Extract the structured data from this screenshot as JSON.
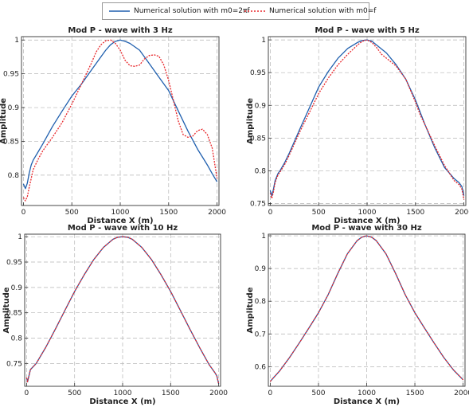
{
  "legend": {
    "entries": [
      {
        "label": "Numerical solution with m0=2πf",
        "color": "#1f5fae",
        "dash": "solid"
      },
      {
        "label": "Numerical solution with m0=f",
        "color": "#e8262a",
        "dash": "dotted"
      }
    ]
  },
  "chart_data": [
    {
      "type": "line",
      "title": "Mod P - wave with 3 Hz",
      "xlabel": "Distance X (m)",
      "ylabel": "Amplitude",
      "xlim": [
        -20,
        2020
      ],
      "ylim": [
        0.755,
        1.005
      ],
      "xticks": [
        0,
        500,
        1000,
        1500,
        2000
      ],
      "yticks": [
        0.8,
        0.85,
        0.9,
        0.95,
        1
      ],
      "ytick_labels": [
        "0.8",
        "0.85",
        "0.9",
        "0.95",
        "1"
      ],
      "grid": true,
      "series": [
        {
          "name": "Numerical solution with m0=2πf",
          "color": "#1f5fae",
          "dash": "solid",
          "x": [
            0,
            20,
            40,
            60,
            80,
            100,
            150,
            200,
            300,
            400,
            500,
            600,
            700,
            800,
            850,
            900,
            950,
            1000,
            1050,
            1100,
            1200,
            1300,
            1400,
            1500,
            1600,
            1700,
            1800,
            1900,
            1950,
            2000
          ],
          "y": [
            0.787,
            0.78,
            0.788,
            0.803,
            0.815,
            0.822,
            0.834,
            0.846,
            0.872,
            0.895,
            0.917,
            0.935,
            0.955,
            0.975,
            0.985,
            0.993,
            0.998,
            1.0,
            0.998,
            0.995,
            0.985,
            0.965,
            0.945,
            0.925,
            0.895,
            0.865,
            0.838,
            0.815,
            0.802,
            0.79
          ]
        },
        {
          "name": "Numerical solution with m0=f",
          "color": "#e8262a",
          "dash": "dotted",
          "x": [
            0,
            20,
            40,
            60,
            80,
            100,
            150,
            200,
            300,
            400,
            500,
            600,
            700,
            750,
            800,
            850,
            900,
            950,
            1000,
            1050,
            1100,
            1150,
            1200,
            1250,
            1300,
            1350,
            1400,
            1450,
            1500,
            1550,
            1600,
            1650,
            1700,
            1750,
            1800,
            1850,
            1900,
            1950,
            2000
          ],
          "y": [
            0.767,
            0.762,
            0.768,
            0.782,
            0.795,
            0.808,
            0.823,
            0.836,
            0.856,
            0.878,
            0.905,
            0.935,
            0.965,
            0.982,
            0.993,
            0.999,
            1.0,
            0.995,
            0.985,
            0.97,
            0.962,
            0.961,
            0.963,
            0.972,
            0.977,
            0.978,
            0.976,
            0.963,
            0.94,
            0.91,
            0.88,
            0.86,
            0.856,
            0.858,
            0.866,
            0.868,
            0.86,
            0.84,
            0.795
          ]
        }
      ]
    },
    {
      "type": "line",
      "title": "Mod P - wave with 5 Hz",
      "xlabel": "Distance X (m)",
      "ylabel": "Amplitude",
      "xlim": [
        -20,
        2020
      ],
      "ylim": [
        0.747,
        1.005
      ],
      "xticks": [
        0,
        500,
        1000,
        1500,
        2000
      ],
      "yticks": [
        0.75,
        0.8,
        0.85,
        0.9,
        0.95,
        1
      ],
      "ytick_labels": [
        "0.75",
        "0.8",
        "0.85",
        "0.9",
        "0.95",
        "1"
      ],
      "grid": true,
      "series": [
        {
          "name": "Numerical solution with m0=2πf",
          "color": "#1f5fae",
          "dash": "solid",
          "x": [
            0,
            15,
            30,
            50,
            80,
            100,
            150,
            200,
            300,
            400,
            500,
            600,
            700,
            800,
            900,
            950,
            1000,
            1050,
            1100,
            1200,
            1300,
            1400,
            1500,
            1600,
            1700,
            1800,
            1900,
            1950,
            1980,
            2000
          ],
          "y": [
            0.77,
            0.762,
            0.77,
            0.785,
            0.796,
            0.8,
            0.813,
            0.828,
            0.862,
            0.895,
            0.928,
            0.952,
            0.972,
            0.987,
            0.996,
            0.999,
            1.0,
            0.998,
            0.992,
            0.98,
            0.962,
            0.94,
            0.908,
            0.87,
            0.835,
            0.805,
            0.788,
            0.782,
            0.776,
            0.762
          ]
        },
        {
          "name": "Numerical solution with m0=f",
          "color": "#e8262a",
          "dash": "dotted",
          "x": [
            0,
            15,
            30,
            50,
            80,
            100,
            150,
            200,
            300,
            400,
            500,
            600,
            700,
            800,
            900,
            950,
            1000,
            1050,
            1100,
            1150,
            1200,
            1300,
            1400,
            1500,
            1550,
            1600,
            1700,
            1800,
            1900,
            1950,
            1980,
            2000
          ],
          "y": [
            0.766,
            0.758,
            0.766,
            0.782,
            0.794,
            0.798,
            0.81,
            0.825,
            0.858,
            0.888,
            0.918,
            0.942,
            0.962,
            0.978,
            0.992,
            0.998,
            1.0,
            0.996,
            0.988,
            0.978,
            0.972,
            0.96,
            0.94,
            0.905,
            0.885,
            0.87,
            0.838,
            0.808,
            0.785,
            0.779,
            0.772,
            0.756
          ]
        }
      ]
    },
    {
      "type": "line",
      "title": "Mod P - wave with 10 Hz",
      "xlabel": "Distance X (m)",
      "ylabel": "Amplitude",
      "xlim": [
        -20,
        2020
      ],
      "ylim": [
        0.705,
        1.005
      ],
      "xticks": [
        0,
        500,
        1000,
        1500,
        2000
      ],
      "yticks": [
        0.75,
        0.8,
        0.85,
        0.9,
        0.95,
        1
      ],
      "ytick_labels": [
        "0.75",
        "0.8",
        "0.85",
        "0.9",
        "0.95",
        "1"
      ],
      "grid": true,
      "series": [
        {
          "name": "Numerical solution with m0=2πf",
          "color": "#1f5fae",
          "dash": "solid",
          "x": [
            0,
            10,
            20,
            40,
            100,
            200,
            300,
            400,
            500,
            600,
            700,
            800,
            900,
            950,
            1000,
            1050,
            1100,
            1200,
            1300,
            1400,
            1500,
            1600,
            1700,
            1800,
            1900,
            1960,
            1980,
            1990,
            2000
          ],
          "y": [
            0.722,
            0.714,
            0.722,
            0.738,
            0.75,
            0.782,
            0.818,
            0.855,
            0.892,
            0.925,
            0.955,
            0.979,
            0.995,
            0.999,
            1.0,
            0.999,
            0.995,
            0.979,
            0.955,
            0.925,
            0.892,
            0.855,
            0.818,
            0.782,
            0.748,
            0.732,
            0.726,
            0.718,
            0.71
          ]
        },
        {
          "name": "Numerical solution with m0=f",
          "color": "#e8262a",
          "dash": "dotted",
          "x": [
            0,
            10,
            20,
            40,
            100,
            200,
            300,
            400,
            500,
            600,
            700,
            800,
            900,
            950,
            1000,
            1050,
            1100,
            1200,
            1300,
            1400,
            1500,
            1600,
            1700,
            1800,
            1900,
            1960,
            1980,
            1990,
            2000
          ],
          "y": [
            0.722,
            0.714,
            0.722,
            0.738,
            0.75,
            0.782,
            0.818,
            0.855,
            0.892,
            0.925,
            0.955,
            0.979,
            0.995,
            0.999,
            1.0,
            0.999,
            0.995,
            0.979,
            0.955,
            0.925,
            0.892,
            0.855,
            0.818,
            0.782,
            0.748,
            0.732,
            0.726,
            0.718,
            0.71
          ]
        }
      ]
    },
    {
      "type": "line",
      "title": "Mod P - wave with 30 Hz",
      "xlabel": "Distance X (m)",
      "ylabel": "Amplitude",
      "xlim": [
        -20,
        2020
      ],
      "ylim": [
        0.54,
        1.005
      ],
      "xticks": [
        0,
        500,
        1000,
        1500,
        2000
      ],
      "yticks": [
        0.6,
        0.7,
        0.8,
        0.9,
        1
      ],
      "ytick_labels": [
        "0.6",
        "0.7",
        "0.8",
        "0.9",
        "1"
      ],
      "grid": true,
      "series": [
        {
          "name": "Numerical solution with m0=2πf",
          "color": "#1f5fae",
          "dash": "solid",
          "x": [
            0,
            100,
            200,
            300,
            400,
            500,
            600,
            700,
            800,
            900,
            950,
            1000,
            1050,
            1100,
            1200,
            1300,
            1400,
            1500,
            1600,
            1700,
            1800,
            1900,
            2000
          ],
          "y": [
            0.555,
            0.588,
            0.628,
            0.672,
            0.718,
            0.765,
            0.82,
            0.885,
            0.945,
            0.985,
            0.996,
            1.0,
            0.996,
            0.985,
            0.945,
            0.885,
            0.82,
            0.765,
            0.718,
            0.672,
            0.628,
            0.59,
            0.56
          ]
        },
        {
          "name": "Numerical solution with m0=f",
          "color": "#e8262a",
          "dash": "dotted",
          "x": [
            0,
            100,
            200,
            300,
            400,
            500,
            600,
            700,
            800,
            900,
            950,
            1000,
            1050,
            1100,
            1200,
            1300,
            1400,
            1500,
            1600,
            1700,
            1800,
            1900,
            2000
          ],
          "y": [
            0.555,
            0.588,
            0.628,
            0.672,
            0.718,
            0.765,
            0.82,
            0.885,
            0.945,
            0.985,
            0.996,
            1.0,
            0.996,
            0.985,
            0.945,
            0.885,
            0.82,
            0.765,
            0.718,
            0.672,
            0.628,
            0.59,
            0.56
          ]
        }
      ]
    }
  ]
}
